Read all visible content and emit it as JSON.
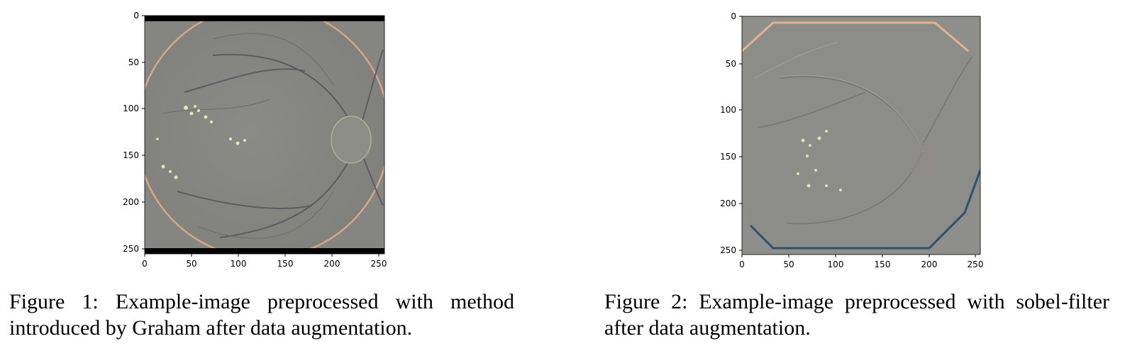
{
  "figures": [
    {
      "caption": "Figure 1: Example-image preprocessed with method introduced by Graham after data augmentation.",
      "image_description": "fundus image, grayish high-pass preprocessing with black bars top and bottom",
      "x_ticks": [
        "0",
        "50",
        "100",
        "150",
        "200",
        "250"
      ],
      "y_ticks": [
        "0",
        "50",
        "100",
        "150",
        "200",
        "250"
      ]
    },
    {
      "caption": "Figure 2: Example-image preprocessed with sobel-filter after data augmentation.",
      "image_description": "fundus image, embossed sobel-filtered look with orange top rim and blue bottom rim",
      "x_ticks": [
        "0",
        "50",
        "100",
        "150",
        "200",
        "250"
      ],
      "y_ticks": [
        "0",
        "50",
        "100",
        "150",
        "200",
        "250"
      ]
    }
  ]
}
